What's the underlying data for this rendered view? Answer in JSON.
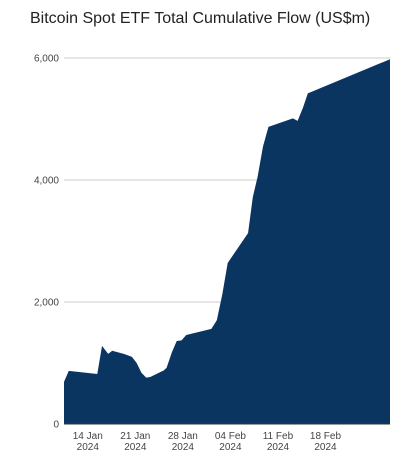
{
  "chart_data": {
    "type": "area",
    "title": "Bitcoin Spot ETF Total Cumulative Flow (US$m)",
    "xlabel": "",
    "ylabel": "",
    "ylim": [
      0,
      6000
    ],
    "grid": true,
    "legend": "none",
    "color": "#0b3561",
    "y_ticks": [
      {
        "value": 0,
        "label": "0"
      },
      {
        "value": 2000,
        "label": "2,000"
      },
      {
        "value": 4000,
        "label": "4,000"
      },
      {
        "value": 6000,
        "label": "6,000"
      }
    ],
    "x_ticks": [
      {
        "day": 14,
        "line1": "14 Jan",
        "line2": "2024"
      },
      {
        "day": 21,
        "line1": "21 Jan",
        "line2": "2024"
      },
      {
        "day": 28,
        "line1": "28 Jan",
        "line2": "2024"
      },
      {
        "day": 35,
        "line1": "04 Feb",
        "line2": "2024"
      },
      {
        "day": 42,
        "line1": "11 Feb",
        "line2": "2024"
      },
      {
        "day": 49,
        "line1": "18 Feb",
        "line2": "2024"
      }
    ],
    "x_range": [
      10.5,
      58.5
    ],
    "points": [
      {
        "day": 10.5,
        "value": 690
      },
      {
        "day": 11.2,
        "value": 870
      },
      {
        "day": 15.4,
        "value": 820
      },
      {
        "day": 16.1,
        "value": 1280
      },
      {
        "day": 17.0,
        "value": 1150
      },
      {
        "day": 17.6,
        "value": 1200
      },
      {
        "day": 19.3,
        "value": 1150
      },
      {
        "day": 20.5,
        "value": 1100
      },
      {
        "day": 21.2,
        "value": 1000
      },
      {
        "day": 21.9,
        "value": 840
      },
      {
        "day": 22.6,
        "value": 760
      },
      {
        "day": 23.2,
        "value": 770
      },
      {
        "day": 25.2,
        "value": 880
      },
      {
        "day": 25.6,
        "value": 920
      },
      {
        "day": 26.4,
        "value": 1180
      },
      {
        "day": 27.1,
        "value": 1360
      },
      {
        "day": 27.8,
        "value": 1370
      },
      {
        "day": 28.5,
        "value": 1460
      },
      {
        "day": 32.2,
        "value": 1560
      },
      {
        "day": 33.0,
        "value": 1700
      },
      {
        "day": 33.8,
        "value": 2120
      },
      {
        "day": 34.6,
        "value": 2640
      },
      {
        "day": 37.6,
        "value": 3130
      },
      {
        "day": 38.3,
        "value": 3720
      },
      {
        "day": 39.0,
        "value": 4050
      },
      {
        "day": 39.8,
        "value": 4550
      },
      {
        "day": 40.6,
        "value": 4870
      },
      {
        "day": 44.2,
        "value": 5010
      },
      {
        "day": 44.9,
        "value": 4970
      },
      {
        "day": 45.7,
        "value": 5190
      },
      {
        "day": 46.4,
        "value": 5420
      },
      {
        "day": 58.5,
        "value": 5980
      }
    ]
  }
}
